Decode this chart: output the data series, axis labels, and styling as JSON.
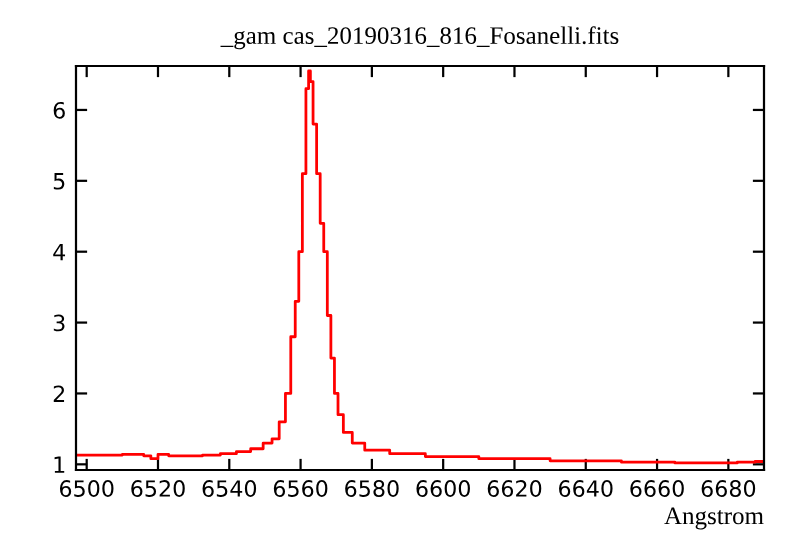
{
  "chart_data": {
    "type": "step",
    "title": "_gam cas_20190316_816_Fosanelli.fits",
    "xlabel": "Angstrom",
    "x": [
      6497,
      6505,
      6515,
      6517,
      6519,
      6521,
      6525,
      6530,
      6535,
      6540,
      6544,
      6548,
      6551,
      6553,
      6555,
      6556.5,
      6558,
      6559,
      6560,
      6561,
      6562,
      6562.5,
      6563,
      6564,
      6565,
      6566,
      6567,
      6568,
      6569,
      6570,
      6571,
      6573,
      6576,
      6580,
      6590,
      6600,
      6620,
      6640,
      6660,
      6670,
      6680,
      6685,
      6690
    ],
    "series": [
      {
        "color": "#ff0000",
        "values": [
          1.13,
          1.13,
          1.14,
          1.12,
          1.08,
          1.14,
          1.12,
          1.12,
          1.13,
          1.15,
          1.18,
          1.22,
          1.3,
          1.36,
          1.6,
          2.0,
          2.8,
          3.3,
          4.0,
          5.1,
          6.3,
          6.55,
          6.4,
          5.8,
          5.1,
          4.4,
          4.0,
          3.1,
          2.5,
          2.0,
          1.7,
          1.45,
          1.3,
          1.2,
          1.15,
          1.11,
          1.08,
          1.05,
          1.03,
          1.02,
          1.02,
          1.03,
          1.04
        ]
      }
    ],
    "xlim": [
      6497,
      6690
    ],
    "ylim": [
      0.92,
      6.62
    ],
    "xticks": [
      6500,
      6520,
      6540,
      6560,
      6580,
      6600,
      6620,
      6640,
      6660,
      6680
    ],
    "yticks": [
      1,
      2,
      3,
      4,
      5,
      6
    ],
    "grid": false
  }
}
